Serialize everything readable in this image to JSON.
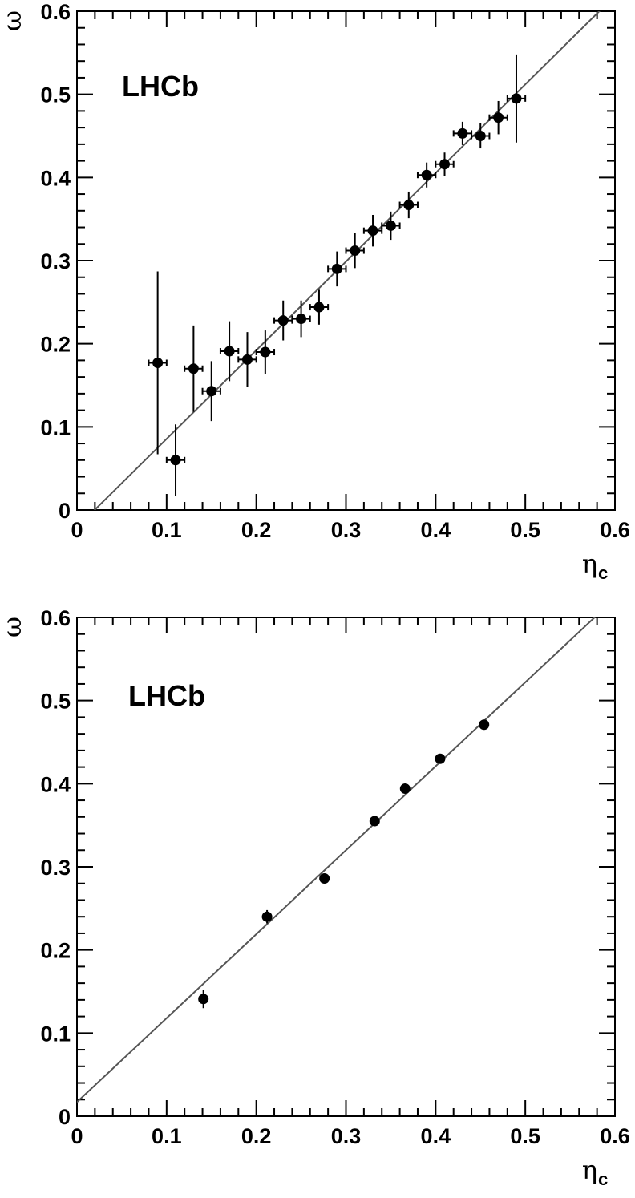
{
  "chart_data": [
    {
      "type": "scatter",
      "title": "",
      "watermark": "LHCb",
      "xlabel": "η",
      "xlabel_sub": "c",
      "ylabel": "ω",
      "xlim": [
        0,
        0.6
      ],
      "ylim": [
        0,
        0.6
      ],
      "x_ticks": [
        "0",
        "0.1",
        "0.2",
        "0.3",
        "0.4",
        "0.5",
        "0.6"
      ],
      "y_ticks": [
        "0",
        "0.1",
        "0.2",
        "0.3",
        "0.4",
        "0.5",
        "0.6"
      ],
      "grid": false,
      "fit_line": {
        "intercept": -0.021,
        "slope": 1.066
      },
      "points": [
        {
          "x": 0.09,
          "y": 0.177,
          "xerr": 0.01,
          "yerr": 0.11
        },
        {
          "x": 0.11,
          "y": 0.06,
          "xerr": 0.01,
          "yerr": 0.043
        },
        {
          "x": 0.13,
          "y": 0.17,
          "xerr": 0.01,
          "yerr": 0.052
        },
        {
          "x": 0.15,
          "y": 0.143,
          "xerr": 0.01,
          "yerr": 0.036
        },
        {
          "x": 0.17,
          "y": 0.191,
          "xerr": 0.01,
          "yerr": 0.036
        },
        {
          "x": 0.19,
          "y": 0.181,
          "xerr": 0.01,
          "yerr": 0.033
        },
        {
          "x": 0.21,
          "y": 0.19,
          "xerr": 0.01,
          "yerr": 0.026
        },
        {
          "x": 0.23,
          "y": 0.228,
          "xerr": 0.01,
          "yerr": 0.024
        },
        {
          "x": 0.25,
          "y": 0.23,
          "xerr": 0.01,
          "yerr": 0.022
        },
        {
          "x": 0.27,
          "y": 0.244,
          "xerr": 0.01,
          "yerr": 0.021
        },
        {
          "x": 0.29,
          "y": 0.29,
          "xerr": 0.01,
          "yerr": 0.021
        },
        {
          "x": 0.31,
          "y": 0.312,
          "xerr": 0.01,
          "yerr": 0.021
        },
        {
          "x": 0.33,
          "y": 0.336,
          "xerr": 0.01,
          "yerr": 0.019
        },
        {
          "x": 0.35,
          "y": 0.342,
          "xerr": 0.01,
          "yerr": 0.017
        },
        {
          "x": 0.37,
          "y": 0.367,
          "xerr": 0.01,
          "yerr": 0.016
        },
        {
          "x": 0.39,
          "y": 0.403,
          "xerr": 0.01,
          "yerr": 0.015
        },
        {
          "x": 0.41,
          "y": 0.416,
          "xerr": 0.01,
          "yerr": 0.014
        },
        {
          "x": 0.43,
          "y": 0.453,
          "xerr": 0.01,
          "yerr": 0.014
        },
        {
          "x": 0.45,
          "y": 0.45,
          "xerr": 0.01,
          "yerr": 0.015
        },
        {
          "x": 0.47,
          "y": 0.472,
          "xerr": 0.01,
          "yerr": 0.02
        },
        {
          "x": 0.49,
          "y": 0.495,
          "xerr": 0.01,
          "yerr": 0.053
        }
      ]
    },
    {
      "type": "scatter",
      "title": "",
      "watermark": "LHCb",
      "xlabel": "η",
      "xlabel_sub": "c",
      "ylabel": "ω",
      "xlim": [
        0,
        0.6
      ],
      "ylim": [
        0,
        0.6
      ],
      "x_ticks": [
        "0",
        "0.1",
        "0.2",
        "0.3",
        "0.4",
        "0.5",
        "0.6"
      ],
      "y_ticks": [
        "0",
        "0.1",
        "0.2",
        "0.3",
        "0.4",
        "0.5",
        "0.6"
      ],
      "grid": false,
      "fit_line": {
        "intercept": 0.017,
        "slope": 1.01
      },
      "points": [
        {
          "x": 0.141,
          "y": 0.141,
          "xerr": 0.0,
          "yerr": 0.011
        },
        {
          "x": 0.212,
          "y": 0.24,
          "xerr": 0.0,
          "yerr": 0.008
        },
        {
          "x": 0.276,
          "y": 0.286,
          "xerr": 0.0,
          "yerr": 0.005
        },
        {
          "x": 0.332,
          "y": 0.355,
          "xerr": 0.0,
          "yerr": 0.004
        },
        {
          "x": 0.366,
          "y": 0.394,
          "xerr": 0.0,
          "yerr": 0.004
        },
        {
          "x": 0.405,
          "y": 0.43,
          "xerr": 0.0,
          "yerr": 0.004
        },
        {
          "x": 0.454,
          "y": 0.471,
          "xerr": 0.0,
          "yerr": 0.004
        }
      ]
    }
  ]
}
